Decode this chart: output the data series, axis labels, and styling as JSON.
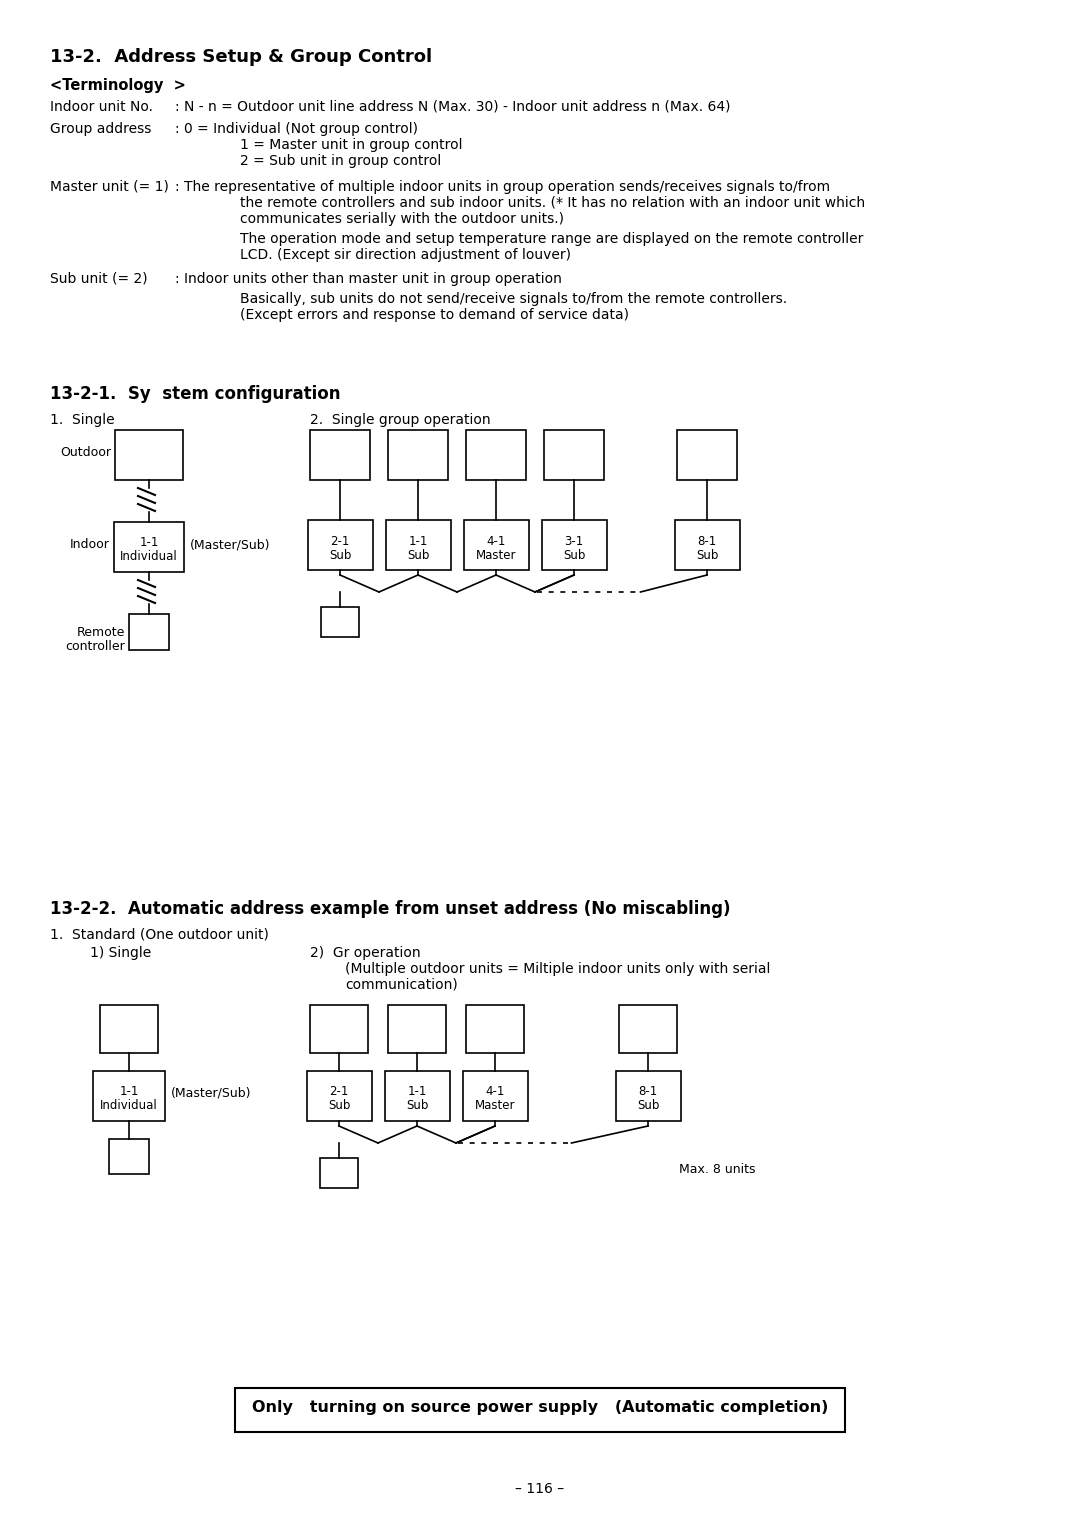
{
  "title_main": "13-2.  Address Setup & Group Control",
  "terminology_header": "<Terminology  >",
  "section_title_1": "13-2-1.  Sy  stem configuration",
  "subsection_1a": "1.  Single",
  "subsection_1b": "2.  Single group operation",
  "section_title_2": "13-2-2.  Automatic address example from unset address (No miscabling)",
  "subsection_2a": "1.  Standard (One outdoor unit)",
  "subsection_2a1": "1) Single",
  "subsection_2a2": "2)  Gr operation",
  "subsection_2a2_line1": "(Multiple outdoor units = Miltiple indoor units only with serial",
  "subsection_2a2_line2": "communication)",
  "bottom_box_text": "Only   turning on source power supply   (Automatic completion)",
  "page_number": "– 116 –",
  "background_color": "#ffffff",
  "text_color": "#000000"
}
